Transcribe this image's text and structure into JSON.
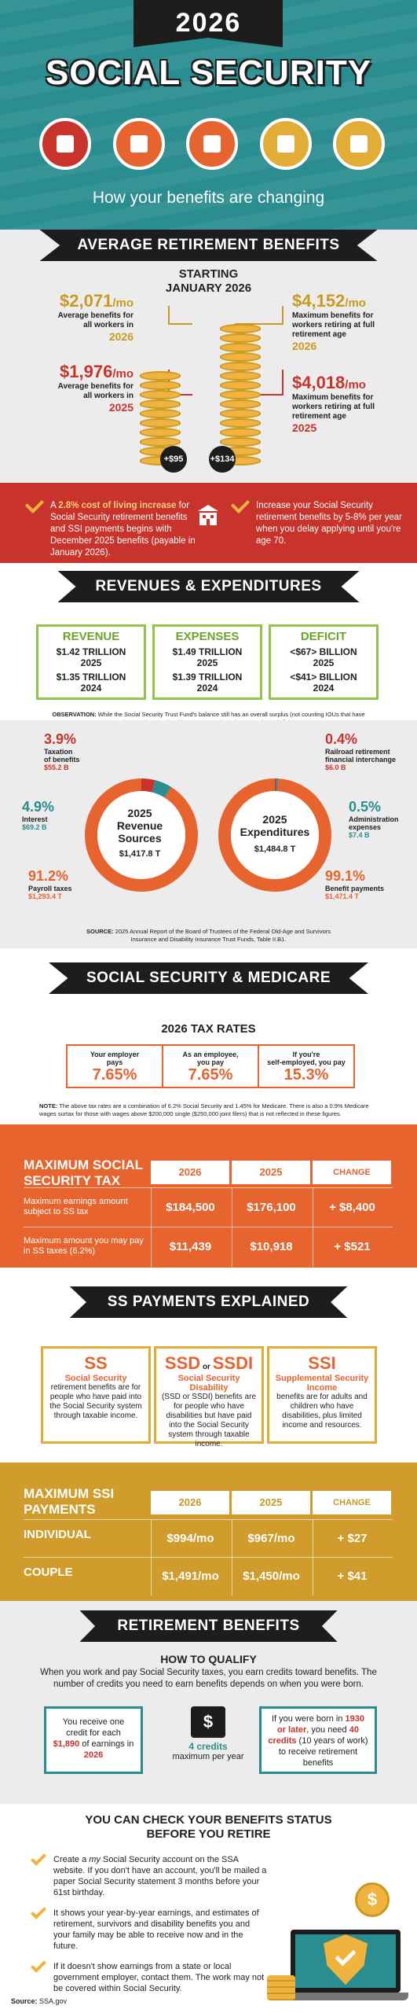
{
  "header": {
    "year": "2026",
    "title": "SOCIAL SECURITY",
    "subtitle": "How your benefits are changing",
    "colors": {
      "teal": "#2a8d8f",
      "red": "#c8332c",
      "orange": "#e8642f",
      "gold": "#c89a1f"
    },
    "icons": [
      {
        "name": "money-icon",
        "color": "#c8332c"
      },
      {
        "name": "building-icon",
        "color": "#e8642f"
      },
      {
        "name": "medical-kit-icon",
        "color": "#e8642f"
      },
      {
        "name": "cash-icon",
        "color": "#e2ad36"
      },
      {
        "name": "calculator-icon",
        "color": "#e2ad36"
      }
    ]
  },
  "avg": {
    "banner": "AVERAGE RETIREMENT BENEFITS",
    "start1": "STARTING",
    "start2": "JANUARY 2026",
    "left": [
      {
        "value": "$2,071",
        "unit": "/mo",
        "line1": "Average benefits for",
        "line2": "all workers in",
        "year": "2026"
      },
      {
        "value": "$1,976",
        "unit": "/mo",
        "line1": "Average benefits for",
        "line2": "all workers in",
        "year": "2025"
      }
    ],
    "right": [
      {
        "value": "$4,152",
        "unit": "/mo",
        "line1": "Maximum benefits for",
        "line2": "workers retiring at full",
        "line3": "retirement age",
        "year": "2026"
      },
      {
        "value": "$4,018",
        "unit": "/mo",
        "line1": "Maximum benefits for",
        "line2": "workers retiring at full",
        "line3": "retirement age",
        "year": "2025"
      }
    ],
    "coin1": "+$95",
    "coin2": "+$134"
  },
  "cola": {
    "left": {
      "pre": "A ",
      "bold": "2.8% cost of living increase",
      "post": " for Social Security retirement benefits and SSI payments begins with December 2025 benefits (payable in January 2026)."
    },
    "right": "Increase your Social Security retirement benefits by 5-8% per year when you delay applying until you're age 70."
  },
  "rev": {
    "banner": "REVENUES & EXPENDITURES",
    "cols": [
      {
        "head": "REVENUE",
        "v1": "$1.42 TRILLION",
        "y1": "2025",
        "v2": "$1.35 TRILLION",
        "y2": "2024"
      },
      {
        "head": "EXPENSES",
        "v1": "$1.49 TRILLION",
        "y1": "2025",
        "v2": "$1.39 TRILLION",
        "y2": "2024"
      },
      {
        "head": "DEFICIT",
        "v1": "<$67> BILLION",
        "y1": "2025",
        "v2": "<$41> BILLION",
        "y2": "2024"
      }
    ],
    "obs_bold": "OBSERVATION:",
    "obs": " While the Social Security Trust Fund's balance still has an overall surplus (not counting IOUs that have been written against it), recent years have been running a deficit."
  },
  "donuts": {
    "revenue": {
      "title1": "2025",
      "title2": "Revenue",
      "title3": "Sources",
      "total": "$1,417.8 T",
      "items": [
        {
          "pct": "3.9%",
          "label1": "Taxation",
          "label2": "of benefits",
          "amount": "$55.2 B"
        },
        {
          "pct": "4.9%",
          "label1": "Interest",
          "label2": "",
          "amount": "$69.2 B"
        },
        {
          "pct": "91.2%",
          "label1": "Payroll taxes",
          "label2": "",
          "amount": "$1,293.4 T"
        }
      ],
      "values": [
        3.9,
        4.9,
        91.2
      ]
    },
    "expend": {
      "title1": "2025",
      "title2": "Expenditures",
      "total": "$1,484.8 T",
      "items": [
        {
          "pct": "0.4%",
          "label1": "Railroad retirement",
          "label2": "financial interchange",
          "amount": "$6.0 B"
        },
        {
          "pct": "0.5%",
          "label1": "Administration",
          "label2": "expenses",
          "amount": "$7.4 B"
        },
        {
          "pct": "99.1%",
          "label1": "Benefit payments",
          "label2": "",
          "amount": "$1,471.4 T"
        }
      ],
      "values": [
        0.4,
        0.5,
        99.1
      ]
    },
    "source_bold": "SOURCE:",
    "source": " 2025 Annual Report of the Board of Trustees of the Federal Old-Age and Survivors Insurance and Disability Insurance Trust Funds, Table II.B1."
  },
  "medicare": {
    "banner": "SOCIAL SECURITY & MEDICARE",
    "title": "2026 TAX RATES",
    "rates": [
      {
        "l1": "Your employer",
        "l2": "pays",
        "v": "7.65%"
      },
      {
        "l1": "As an employee,",
        "l2": "you pay",
        "v": "7.65%"
      },
      {
        "l1": "If you're",
        "l2": "self-employed, you pay",
        "v": "15.3%"
      }
    ],
    "note_bold": "NOTE:",
    "note": " The above tax rates are a combination of 6.2% Social Security and 1.45% for Medicare. There is also a 0.9% Medicare wages surtax for those with wages above $200,000 single ($250,000 joint filers) that is not reflected in these figures."
  },
  "maxtax": {
    "title": "MAXIMUM SOCIAL SECURITY TAX",
    "h2026": "2026",
    "h2025": "2025",
    "hchange": "CHANGE",
    "rows": [
      {
        "label": "Maximum earnings amount subject to SS tax",
        "v26": "$184,500",
        "v25": "$176,100",
        "ch": "+ $8,400"
      },
      {
        "label": "Maximum amount you may pay in SS taxes (6.2%)",
        "v26": "$11,439",
        "v25": "$10,918",
        "ch": "+ $521"
      }
    ]
  },
  "payments": {
    "banner": "SS PAYMENTS EXPLAINED",
    "cards": [
      {
        "big": "SS",
        "sub": "Social Security",
        "text": "retirement benefits are for people who have paid into the Social Security system through taxable income."
      },
      {
        "big1": "SSD",
        "or": "or",
        "big2": "SSDI",
        "sub": "Social Security Disability",
        "text": "(SSD or SSDI) benefits are for people who have disabilities but have paid into the Social Security system through taxable income."
      },
      {
        "big": "SSI",
        "sub": "Supplemental Security Income",
        "text": "benefits are for adults and children who have disabilities, plus limited income and resources."
      }
    ]
  },
  "ssi": {
    "title": "MAXIMUM SSI PAYMENTS",
    "h2026": "2026",
    "h2025": "2025",
    "hchange": "CHANGE",
    "rows": [
      {
        "label": "INDIVIDUAL",
        "v26": "$994/mo",
        "v25": "$967/mo",
        "ch": "+ $27"
      },
      {
        "label": "COUPLE",
        "v26": "$1,491/mo",
        "v25": "$1,450/mo",
        "ch": "+ $41"
      }
    ]
  },
  "retire": {
    "banner": "RETIREMENT BENEFITS",
    "title": "HOW TO QUALIFY",
    "intro": "When you work and pay Social Security taxes, you earn credits toward benefits. The number of credits you need to earn benefits depends on when you were born.",
    "left": {
      "pre": "You receive one credit for each ",
      "amt": "$1,890",
      "mid": " of earnings in ",
      "year": "2026"
    },
    "center": {
      "c1": "4 credits",
      "c2": "maximum per year"
    },
    "right": {
      "pre": "If you were born in ",
      "y": "1930 or later",
      "mid": ", you need ",
      "c": "40 credits",
      "post": " (10 years of work) to receive retirement benefits"
    }
  },
  "check": {
    "title1": "YOU CAN CHECK YOUR BENEFITS STATUS",
    "title2": "BEFORE YOU RETIRE",
    "items": [
      {
        "pre": "Create a ",
        "em": "my",
        "post": " Social Security account on the SSA website. If you don't have an account, you'll be mailed a paper Social Security statement 3 months before your 61st birthday."
      },
      {
        "pre": "It shows your year-by-year earnings, and estimates of retirement, survivors and disability benefits you and your family may be able to receive now and in the future.",
        "em": "",
        "post": ""
      },
      {
        "pre": "If it doesn't show earnings from a state or local government employer, contact them. The work may not be covered within Social Security.",
        "em": "",
        "post": ""
      }
    ],
    "source_bold": "Source:",
    "source": " SSA.gov",
    "coin": "$"
  }
}
